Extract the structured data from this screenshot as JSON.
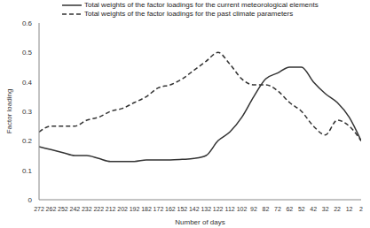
{
  "chart_data": {
    "type": "line",
    "x_label": "Number of days",
    "y_label": "Factor loading",
    "x": [
      272,
      262,
      252,
      242,
      232,
      222,
      212,
      202,
      192,
      182,
      172,
      162,
      152,
      142,
      132,
      122,
      112,
      102,
      92,
      82,
      72,
      62,
      52,
      42,
      32,
      22,
      12,
      2
    ],
    "series": [
      {
        "name": "Total weights of the factor loadings for the current meteorological elements",
        "color": "#333333",
        "line_style": "solid",
        "marker": "none",
        "values": [
          0.18,
          0.17,
          0.16,
          0.15,
          0.15,
          0.14,
          0.13,
          0.13,
          0.13,
          0.135,
          0.135,
          0.135,
          0.137,
          0.14,
          0.15,
          0.2,
          0.23,
          0.28,
          0.35,
          0.41,
          0.43,
          0.45,
          0.45,
          0.4,
          0.36,
          0.33,
          0.28,
          0.2
        ]
      },
      {
        "name": "Total weights of the factor loadings for the past climate parameters",
        "color": "#333333",
        "line_style": "dashed",
        "marker": "none",
        "values": [
          0.23,
          0.25,
          0.25,
          0.25,
          0.27,
          0.28,
          0.3,
          0.31,
          0.33,
          0.35,
          0.38,
          0.39,
          0.41,
          0.44,
          0.47,
          0.5,
          0.46,
          0.41,
          0.39,
          0.39,
          0.37,
          0.33,
          0.3,
          0.25,
          0.22,
          0.27,
          0.25,
          0.2
        ]
      }
    ],
    "xlim": [
      272,
      2
    ],
    "xticks": [
      272,
      262,
      252,
      242,
      232,
      222,
      212,
      202,
      192,
      182,
      172,
      162,
      152,
      142,
      132,
      122,
      112,
      102,
      92,
      82,
      72,
      62,
      52,
      42,
      32,
      22,
      12,
      2
    ],
    "ylim": [
      0,
      0.6
    ],
    "yticks": [
      0,
      0.1,
      0.2,
      0.3,
      0.4,
      0.5,
      0.6
    ],
    "grid": false,
    "legend": "top"
  }
}
